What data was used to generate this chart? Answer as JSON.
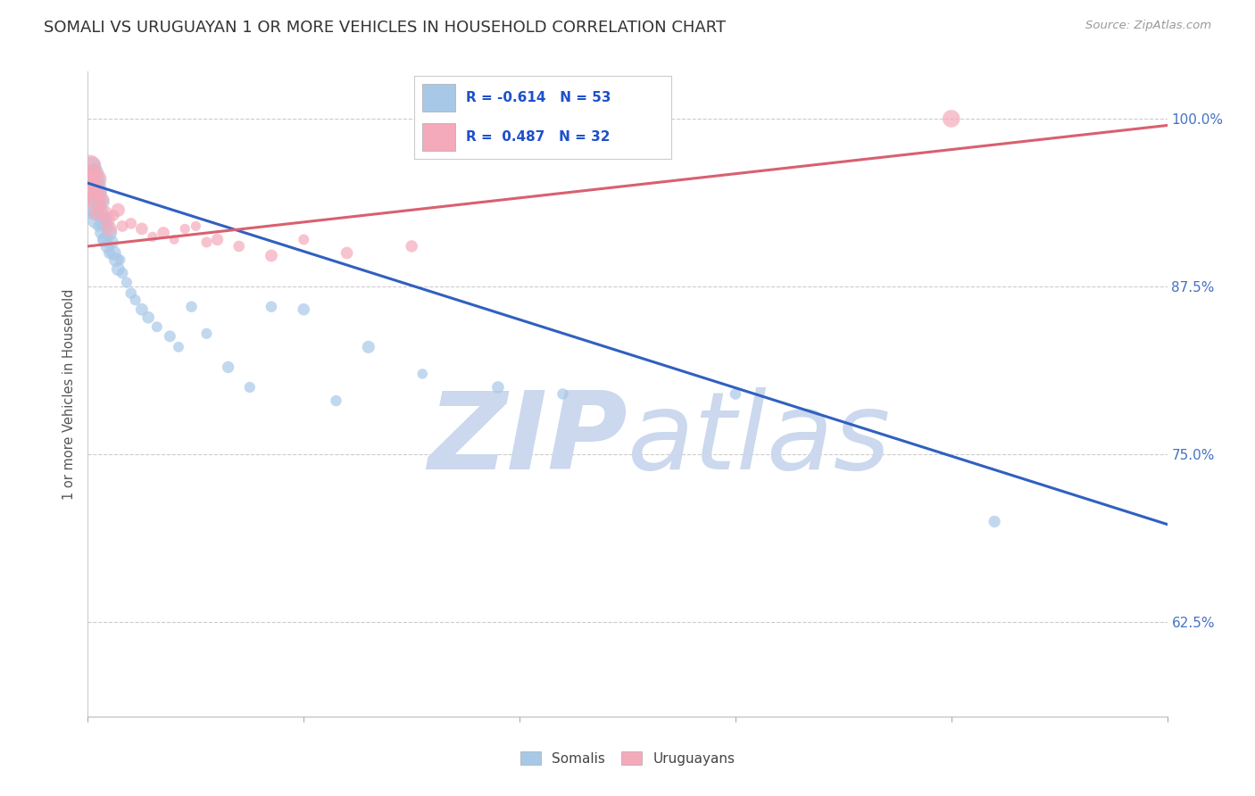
{
  "title": "SOMALI VS URUGUAYAN 1 OR MORE VEHICLES IN HOUSEHOLD CORRELATION CHART",
  "source": "Source: ZipAtlas.com",
  "ylabel": "1 or more Vehicles in Household",
  "ytick_labels": [
    "100.0%",
    "87.5%",
    "75.0%",
    "62.5%"
  ],
  "ytick_values": [
    1.0,
    0.875,
    0.75,
    0.625
  ],
  "xlim": [
    0.0,
    0.5
  ],
  "ylim": [
    0.555,
    1.035
  ],
  "somali_R": -0.614,
  "somali_N": 53,
  "uruguayan_R": 0.487,
  "uruguayan_N": 32,
  "somali_color": "#A8C8E8",
  "uruguayan_color": "#F4AABB",
  "somali_line_color": "#3060C0",
  "uruguayan_line_color": "#D86070",
  "legend_color_somali": "#A8C8E8",
  "legend_color_uruguayan": "#F4AABB",
  "watermark_color": "#CBD8ED",
  "watermark_zip": "ZIP",
  "watermark_atlas": "atlas",
  "background_color": "#FFFFFF",
  "somali_x": [
    0.001,
    0.001,
    0.002,
    0.002,
    0.002,
    0.003,
    0.003,
    0.003,
    0.004,
    0.004,
    0.004,
    0.005,
    0.005,
    0.005,
    0.006,
    0.006,
    0.006,
    0.007,
    0.007,
    0.007,
    0.008,
    0.008,
    0.009,
    0.009,
    0.01,
    0.01,
    0.011,
    0.012,
    0.013,
    0.014,
    0.015,
    0.016,
    0.018,
    0.02,
    0.022,
    0.025,
    0.028,
    0.032,
    0.038,
    0.042,
    0.048,
    0.055,
    0.065,
    0.075,
    0.085,
    0.1,
    0.115,
    0.13,
    0.155,
    0.19,
    0.22,
    0.3,
    0.42
  ],
  "somali_y": [
    0.955,
    0.945,
    0.965,
    0.95,
    0.935,
    0.96,
    0.945,
    0.93,
    0.955,
    0.94,
    0.925,
    0.95,
    0.935,
    0.92,
    0.945,
    0.93,
    0.915,
    0.938,
    0.923,
    0.91,
    0.925,
    0.91,
    0.92,
    0.905,
    0.915,
    0.9,
    0.908,
    0.9,
    0.895,
    0.888,
    0.895,
    0.885,
    0.878,
    0.87,
    0.865,
    0.858,
    0.852,
    0.845,
    0.838,
    0.83,
    0.86,
    0.84,
    0.815,
    0.8,
    0.86,
    0.858,
    0.79,
    0.83,
    0.81,
    0.8,
    0.795,
    0.795,
    0.7
  ],
  "uruguayan_x": [
    0.001,
    0.001,
    0.002,
    0.002,
    0.003,
    0.003,
    0.004,
    0.004,
    0.005,
    0.006,
    0.007,
    0.008,
    0.009,
    0.01,
    0.012,
    0.014,
    0.016,
    0.02,
    0.025,
    0.03,
    0.035,
    0.04,
    0.045,
    0.05,
    0.055,
    0.06,
    0.07,
    0.085,
    0.1,
    0.12,
    0.15,
    0.4
  ],
  "uruguayan_y": [
    0.965,
    0.95,
    0.958,
    0.945,
    0.96,
    0.94,
    0.955,
    0.93,
    0.945,
    0.935,
    0.94,
    0.93,
    0.925,
    0.918,
    0.928,
    0.932,
    0.92,
    0.922,
    0.918,
    0.912,
    0.915,
    0.91,
    0.918,
    0.92,
    0.908,
    0.91,
    0.905,
    0.898,
    0.91,
    0.9,
    0.905,
    1.0
  ],
  "somali_trendline_x": [
    0.0,
    0.5
  ],
  "somali_trendline_y": [
    0.952,
    0.698
  ],
  "uruguayan_trendline_x": [
    0.0,
    0.5
  ],
  "uruguayan_trendline_y": [
    0.905,
    0.995
  ],
  "figsize": [
    14.06,
    8.92
  ],
  "dpi": 100
}
